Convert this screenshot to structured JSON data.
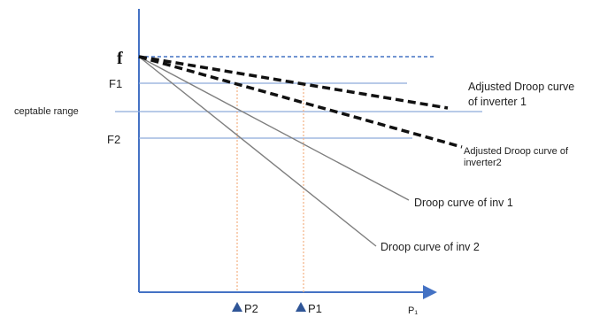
{
  "labels": {
    "f": "f",
    "f1": "F1",
    "f2": "F2",
    "acceptable_range": "ceptable range",
    "adjusted_inv1_line1": "Adjusted Droop curve",
    "adjusted_inv1_line2": "of inverter 1",
    "adjusted_inv2_line1": "Adjusted Droop curve of",
    "adjusted_inv2_line2": "inverter2",
    "droop_inv1": "Droop curve of inv 1",
    "droop_inv2": "Droop curve of inv 2",
    "p1": "P1",
    "p2": "P2",
    "x_axis": "P₁"
  },
  "colors": {
    "axis": "#4472c4",
    "level_lines": "#8eaadb",
    "nominal_dashed": "#4472c4",
    "droop_lines": "#7f7f7f",
    "adjusted_dashed": "#111111",
    "power_markers": "#f4b183",
    "triangle": "#2f5597"
  }
}
